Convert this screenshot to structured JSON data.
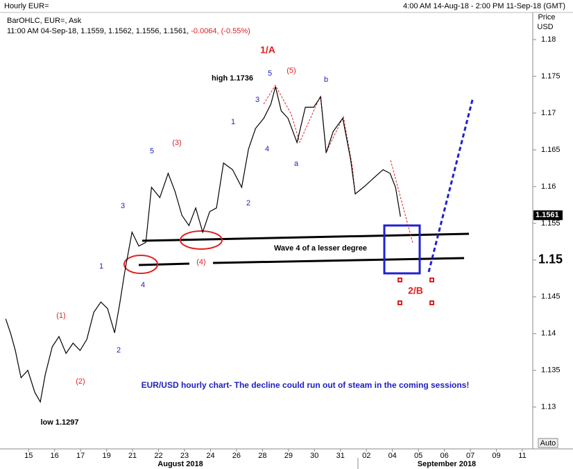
{
  "chart_data": {
    "type": "line",
    "title": "Hourly EUR=",
    "range_text": "4:00 AM 14-Aug-18 - 2:00 PM 11-Sep-18 (GMT)",
    "subtitle": "BarOHLC, EUR=, Ask",
    "info_text": "11:00 AM 04-Sep-18, 1.1559, 1.1562, 1.1556, 1.1561, ",
    "info_change": "-0.0064, (-0.55%)",
    "y_axis_label": [
      "Price",
      "USD"
    ],
    "last_price": 1.1561,
    "auto_label": "Auto",
    "months": [
      "August 2018",
      "September 2018"
    ],
    "color": "#000000",
    "xlim": [
      -1.1,
      19.4
    ],
    "xticks": [
      {
        "value": 0,
        "label": "15"
      },
      {
        "value": 1,
        "label": "16"
      },
      {
        "value": 2,
        "label": "17"
      },
      {
        "value": 3,
        "label": "19"
      },
      {
        "value": 4,
        "label": "21"
      },
      {
        "value": 5,
        "label": "22"
      },
      {
        "value": 6,
        "label": "23"
      },
      {
        "value": 7,
        "label": "24"
      },
      {
        "value": 8,
        "label": "26"
      },
      {
        "value": 9,
        "label": "28"
      },
      {
        "value": 10,
        "label": "29"
      },
      {
        "value": 11,
        "label": "30"
      },
      {
        "value": 12,
        "label": "31"
      },
      {
        "value": 13,
        "label": "02"
      },
      {
        "value": 14,
        "label": "04"
      },
      {
        "value": 15,
        "label": "05"
      },
      {
        "value": 16,
        "label": "06"
      },
      {
        "value": 17,
        "label": "07"
      },
      {
        "value": 18,
        "label": "09"
      },
      {
        "value": 19,
        "label": "11"
      }
    ],
    "ylim": [
      1.1245,
      1.1835
    ],
    "yticks": [
      1.13,
      1.135,
      1.14,
      1.145,
      1.15,
      1.155,
      1.16,
      1.165,
      1.17,
      1.175,
      1.18
    ],
    "x": [
      -0.88,
      -0.69,
      -0.51,
      -0.29,
      -0.03,
      0.24,
      0.45,
      0.64,
      0.91,
      1.17,
      1.44,
      1.71,
      1.98,
      2.24,
      2.51,
      2.78,
      3.04,
      3.31,
      3.5,
      3.71,
      3.98,
      4.24,
      4.51,
      4.73,
      5.05,
      5.37,
      5.63,
      5.9,
      6.17,
      6.43,
      6.7,
      6.97,
      7.23,
      7.5,
      7.85,
      8.2,
      8.46,
      8.73,
      9.05,
      9.32,
      9.5,
      9.72,
      9.98,
      10.33,
      10.65,
      10.97,
      11.24,
      11.45,
      11.72,
      12.09,
      12.39,
      12.57,
      12.92,
      13.32,
      13.64,
      13.91,
      14.12,
      14.31
    ],
    "values": [
      1.142,
      1.14,
      1.1377,
      1.134,
      1.135,
      1.132,
      1.1307,
      1.1344,
      1.1382,
      1.1396,
      1.1373,
      1.1387,
      1.1377,
      1.1392,
      1.1429,
      1.1443,
      1.1434,
      1.1401,
      1.1439,
      1.1486,
      1.1538,
      1.1519,
      1.1524,
      1.1599,
      1.1585,
      1.1618,
      1.1594,
      1.1561,
      1.1547,
      1.1571,
      1.1538,
      1.1566,
      1.1571,
      1.1632,
      1.1623,
      1.1599,
      1.1651,
      1.1679,
      1.1693,
      1.1712,
      1.1736,
      1.1703,
      1.1693,
      1.166,
      1.1708,
      1.1708,
      1.1722,
      1.1646,
      1.1675,
      1.1693,
      1.1637,
      1.159,
      1.16,
      1.1613,
      1.1623,
      1.1618,
      1.1599,
      1.1559
    ],
    "annotations": [
      {
        "text": "1/A",
        "color": "#e02020"
      },
      {
        "text": "high 1.1736",
        "color": "#000000"
      },
      {
        "text": "5",
        "color": "#2020c0"
      },
      {
        "text": "(5)",
        "color": "#e02020"
      },
      {
        "text": "b",
        "color": "#2020c0"
      },
      {
        "text": "3",
        "color": "#2020c0"
      },
      {
        "text": "1",
        "color": "#2020c0"
      },
      {
        "text": "4",
        "color": "#2020c0"
      },
      {
        "text": "a",
        "color": "#2020c0"
      },
      {
        "text": "2",
        "color": "#2020c0"
      },
      {
        "text": "5",
        "color": "#2020c0"
      },
      {
        "text": "(3)",
        "color": "#e02020"
      },
      {
        "text": "3",
        "color": "#2020c0"
      },
      {
        "text": "1",
        "color": "#2020c0"
      },
      {
        "text": "4",
        "color": "#2020c0"
      },
      {
        "text": "2",
        "color": "#2020c0"
      },
      {
        "text": "(4)",
        "color": "#e02020"
      },
      {
        "text": "(1)",
        "color": "#e02020"
      },
      {
        "text": "(2)",
        "color": "#e02020"
      },
      {
        "text": "low 1.1297",
        "color": "#000000"
      },
      {
        "text": "Wave 4 of a lesser degree",
        "color": "#000000"
      },
      {
        "text": "2/B",
        "color": "#e02020"
      },
      {
        "text": "EUR/USD hourly chart- The decline could run out of steam in the coming sessions!",
        "color": "#2020c0"
      }
    ]
  }
}
